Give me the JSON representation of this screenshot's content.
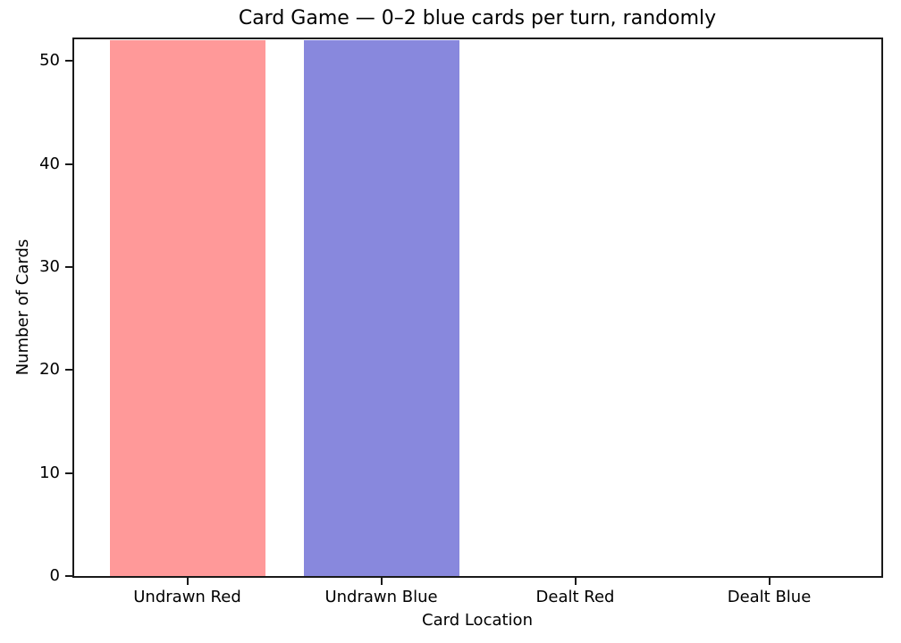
{
  "chart_data": {
    "type": "bar",
    "title": "Card Game — 0–2 blue cards per turn, randomly",
    "xlabel": "Card Location",
    "ylabel": "Number of Cards",
    "categories": [
      "Undrawn Red",
      "Undrawn Blue",
      "Dealt Red",
      "Dealt Blue"
    ],
    "values": [
      52,
      52,
      0,
      0
    ],
    "bar_colors": [
      "#ff9999",
      "#8888dd",
      "#ff9999",
      "#8888dd"
    ],
    "ylim": [
      0,
      52.1
    ],
    "yticks": [
      0,
      10,
      20,
      30,
      40,
      50
    ],
    "grid": false,
    "legend": "none",
    "background_color": "#ffffff",
    "axis_color": "#1a1a1a",
    "text_color": "#000000"
  }
}
